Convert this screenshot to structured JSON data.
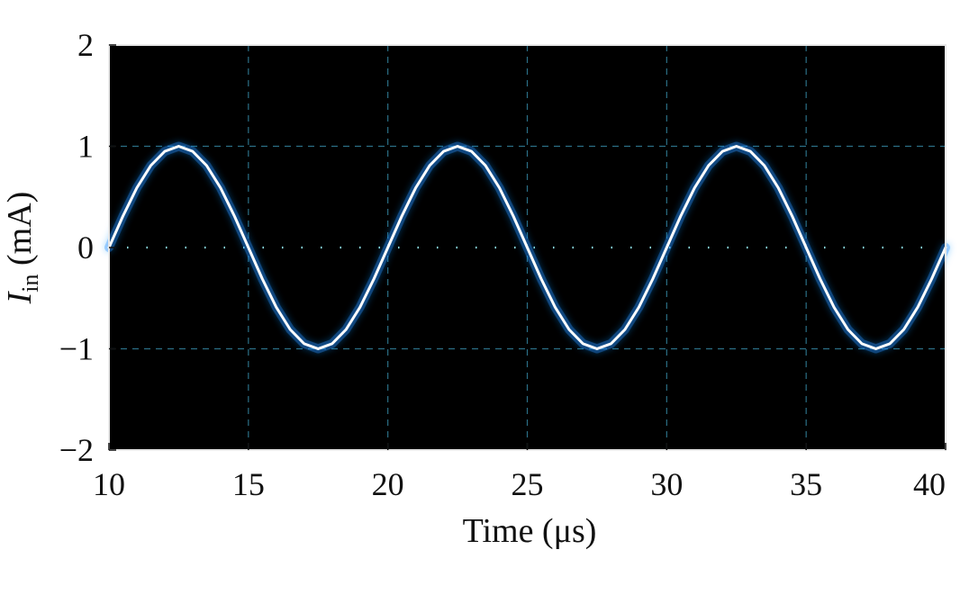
{
  "chart_data": {
    "type": "line",
    "xlabel": "Time (μs)",
    "ylabel_main": "I",
    "ylabel_sub": "in",
    "ylabel_unit": " (mA)",
    "xlim": [
      10,
      40
    ],
    "ylim": [
      -2,
      2
    ],
    "xticks": [
      10,
      15,
      20,
      25,
      30,
      35,
      40
    ],
    "xtick_labels": [
      "10",
      "15",
      "20",
      "25",
      "30",
      "35",
      "40"
    ],
    "yticks": [
      2,
      1,
      0,
      -1,
      -2
    ],
    "ytick_labels": [
      "2",
      "1",
      "0",
      "−1",
      "−2"
    ],
    "dashed_gridlines_x": [
      15,
      20,
      25,
      30,
      35
    ],
    "dashed_gridlines_y": [
      1,
      -1
    ],
    "dotted_zero_line": true,
    "plot_background": "#000000",
    "trace_color": "#ffffff",
    "glow_color": "#1e90ff",
    "grid_color": "#2b6f86",
    "series": [
      {
        "x": [
          10,
          10.5,
          11,
          11.5,
          12,
          12.5,
          13,
          13.5,
          14,
          14.5,
          15,
          15.5,
          16,
          16.5,
          17,
          17.5,
          18,
          18.5,
          19,
          19.5,
          20,
          20.5,
          21,
          21.5,
          22,
          22.5,
          23,
          23.5,
          24,
          24.5,
          25,
          25.5,
          26,
          26.5,
          27,
          27.5,
          28,
          28.5,
          29,
          29.5,
          30,
          30.5,
          31,
          31.5,
          32,
          32.5,
          33,
          33.5,
          34,
          34.5,
          35,
          35.5,
          36,
          36.5,
          37,
          37.5,
          38,
          38.5,
          39,
          39.5,
          40
        ],
        "y": [
          0.0,
          0.31,
          0.59,
          0.81,
          0.95,
          1.0,
          0.95,
          0.81,
          0.59,
          0.31,
          0.0,
          -0.31,
          -0.59,
          -0.81,
          -0.95,
          -1.0,
          -0.95,
          -0.81,
          -0.59,
          -0.31,
          0.0,
          0.31,
          0.59,
          0.81,
          0.95,
          1.0,
          0.95,
          0.81,
          0.59,
          0.31,
          0.0,
          -0.31,
          -0.59,
          -0.81,
          -0.95,
          -1.0,
          -0.95,
          -0.81,
          -0.59,
          -0.31,
          0.0,
          0.31,
          0.59,
          0.81,
          0.95,
          1.0,
          0.95,
          0.81,
          0.59,
          0.31,
          0.0,
          -0.31,
          -0.59,
          -0.81,
          -0.95,
          -1.0,
          -0.95,
          -0.81,
          -0.59,
          -0.31,
          0.0
        ]
      }
    ]
  }
}
